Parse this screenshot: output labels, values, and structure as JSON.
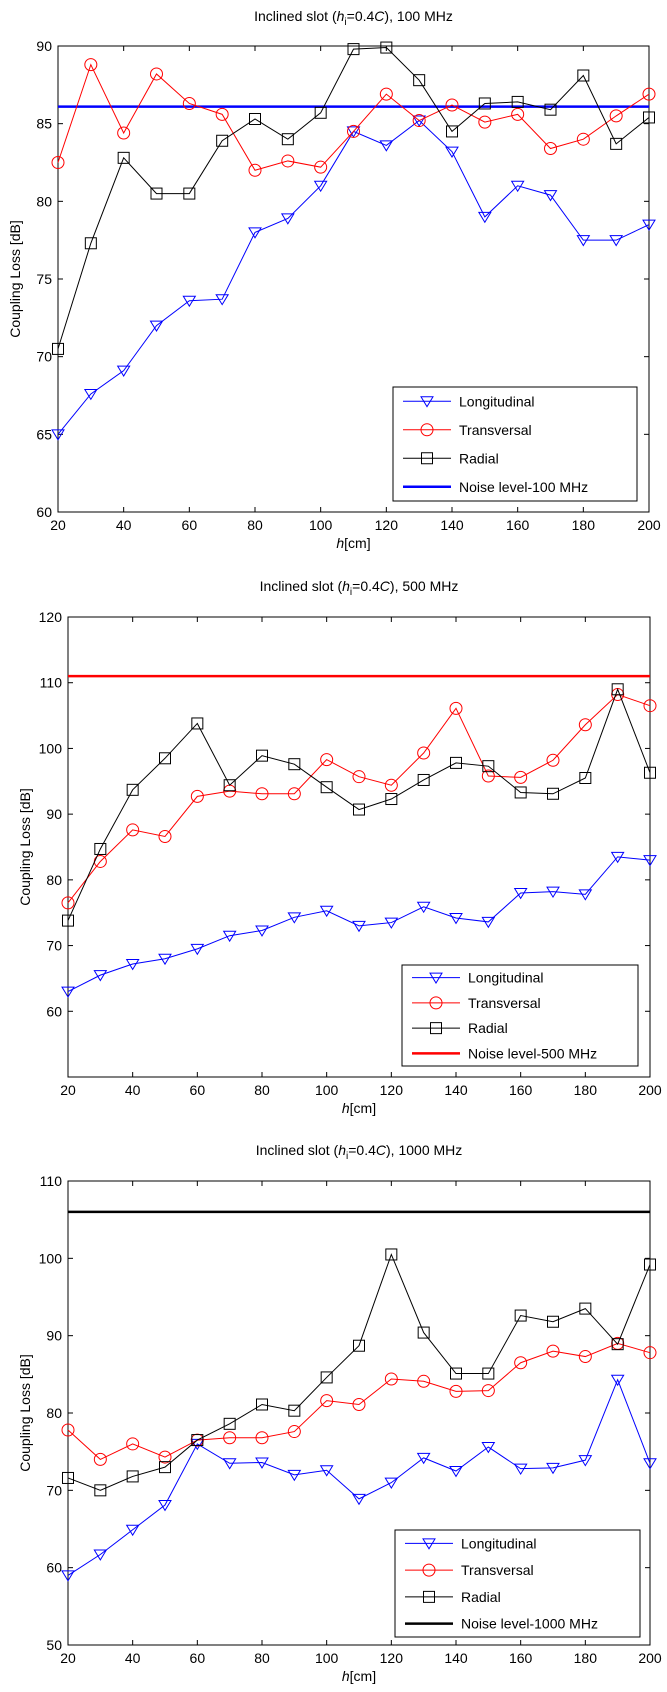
{
  "colors": {
    "longitudinal": "#0000ff",
    "transversal": "#ff0000",
    "radial": "#000000",
    "noise_100": "#0000ff",
    "noise_500": "#ff0000",
    "noise_1000": "#000000"
  },
  "chart_data": [
    {
      "type": "line",
      "title": {
        "pre": "Inclined slot (",
        "h": "h",
        "sub": "i",
        "post": "=0.4",
        "c": "C",
        "end": "), 100 MHz"
      },
      "xlabel": {
        "h": "h",
        "rest": "[cm]"
      },
      "ylabel": "Coupling Loss [dB]",
      "xlim": [
        20,
        200
      ],
      "ylim": [
        60,
        90
      ],
      "xticks": [
        20,
        40,
        60,
        80,
        100,
        120,
        140,
        160,
        180,
        200
      ],
      "yticks": [
        60,
        65,
        70,
        75,
        80,
        85,
        90
      ],
      "x": [
        20,
        30,
        40,
        50,
        60,
        70,
        80,
        90,
        100,
        110,
        120,
        130,
        140,
        150,
        160,
        170,
        180,
        190,
        200
      ],
      "series": [
        {
          "name": "Longitudinal",
          "marker": "triangle-down",
          "color_key": "longitudinal",
          "values": [
            65.0,
            67.6,
            69.1,
            72.0,
            73.6,
            73.7,
            78.0,
            78.9,
            81.0,
            84.5,
            83.6,
            85.2,
            83.2,
            79.0,
            81.0,
            80.4,
            77.5,
            77.5,
            78.5
          ]
        },
        {
          "name": "Transversal",
          "marker": "circle",
          "color_key": "transversal",
          "values": [
            82.5,
            88.8,
            84.4,
            88.2,
            86.3,
            85.6,
            82.0,
            82.6,
            82.2,
            84.5,
            86.9,
            85.2,
            86.2,
            85.1,
            85.6,
            83.4,
            84.0,
            85.5,
            86.9
          ]
        },
        {
          "name": "Radial",
          "marker": "square",
          "color_key": "radial",
          "values": [
            70.5,
            77.3,
            82.8,
            80.5,
            80.5,
            83.9,
            85.3,
            84.0,
            85.7,
            89.8,
            89.9,
            87.8,
            84.5,
            86.3,
            86.4,
            85.9,
            88.1,
            83.7,
            85.4
          ]
        }
      ],
      "noise": {
        "name": "Noise level-100 MHz",
        "value": 86.1,
        "color_key": "noise_100"
      },
      "legend": "bottom-right"
    },
    {
      "type": "line",
      "title": {
        "pre": "Inclined slot (",
        "h": "h",
        "sub": "i",
        "post": "=0.4",
        "c": "C",
        "end": "), 500 MHz"
      },
      "xlabel": {
        "h": "h",
        "rest": "[cm]"
      },
      "ylabel": "Coupling Loss [dB]",
      "xlim": [
        20,
        200
      ],
      "ylim": [
        50,
        120
      ],
      "xticks": [
        20,
        40,
        60,
        80,
        100,
        120,
        140,
        160,
        180,
        200
      ],
      "yticks": [
        60,
        70,
        80,
        90,
        100,
        110,
        120
      ],
      "x": [
        20,
        30,
        40,
        50,
        60,
        70,
        80,
        90,
        100,
        110,
        120,
        130,
        140,
        150,
        160,
        170,
        180,
        190,
        200
      ],
      "series": [
        {
          "name": "Longitudinal",
          "marker": "triangle-down",
          "color_key": "longitudinal",
          "values": [
            63.0,
            65.5,
            67.2,
            68.0,
            69.5,
            71.5,
            72.3,
            74.3,
            75.3,
            73.0,
            73.5,
            75.9,
            74.2,
            73.6,
            78.0,
            78.2,
            77.8,
            83.5,
            83.0
          ]
        },
        {
          "name": "Transversal",
          "marker": "circle",
          "color_key": "transversal",
          "values": [
            76.5,
            82.8,
            87.6,
            86.6,
            92.7,
            93.5,
            93.1,
            93.1,
            98.3,
            95.7,
            94.4,
            99.3,
            106.1,
            95.8,
            95.6,
            98.2,
            103.6,
            108.2,
            106.5
          ]
        },
        {
          "name": "Radial",
          "marker": "square",
          "color_key": "radial",
          "values": [
            73.8,
            84.7,
            93.7,
            98.5,
            103.8,
            94.4,
            98.9,
            97.6,
            94.1,
            90.7,
            92.3,
            95.2,
            97.8,
            97.3,
            93.3,
            93.1,
            95.5,
            109.0,
            96.3
          ]
        }
      ],
      "noise": {
        "name": "Noise level-500 MHz",
        "value": 111.0,
        "color_key": "noise_500"
      },
      "legend": "bottom-right"
    },
    {
      "type": "line",
      "title": {
        "pre": "Inclined slot (",
        "h": "h",
        "sub": "i",
        "post": "=0.4",
        "c": "C",
        "end": "), 1000 MHz"
      },
      "xlabel": {
        "h": "h",
        "rest": "[cm]"
      },
      "ylabel": "Coupling Loss [dB]",
      "xlim": [
        20,
        200
      ],
      "ylim": [
        50,
        110
      ],
      "xticks": [
        20,
        40,
        60,
        80,
        100,
        120,
        140,
        160,
        180,
        200
      ],
      "yticks": [
        50,
        60,
        70,
        80,
        90,
        100,
        110
      ],
      "x": [
        20,
        30,
        40,
        50,
        60,
        70,
        80,
        90,
        100,
        110,
        120,
        130,
        140,
        150,
        160,
        170,
        180,
        190,
        200
      ],
      "series": [
        {
          "name": "Longitudinal",
          "marker": "triangle-down",
          "color_key": "longitudinal",
          "values": [
            59.0,
            61.7,
            64.9,
            68.1,
            76.0,
            73.5,
            73.6,
            72.0,
            72.6,
            68.9,
            71.0,
            74.2,
            72.5,
            75.6,
            72.8,
            72.9,
            73.9,
            84.3,
            73.5
          ]
        },
        {
          "name": "Transversal",
          "marker": "circle",
          "color_key": "transversal",
          "values": [
            77.8,
            74.0,
            76.0,
            74.3,
            76.5,
            76.8,
            76.8,
            77.6,
            81.6,
            81.1,
            84.4,
            84.1,
            82.8,
            82.9,
            86.5,
            88.0,
            87.3,
            89.0,
            87.8
          ]
        },
        {
          "name": "Radial",
          "marker": "square",
          "color_key": "radial",
          "values": [
            71.6,
            70.0,
            71.8,
            73.0,
            76.5,
            78.6,
            81.1,
            80.3,
            84.6,
            88.7,
            100.5,
            90.4,
            85.1,
            85.1,
            92.6,
            91.8,
            93.5,
            88.9,
            99.2
          ]
        }
      ],
      "noise": {
        "name": "Noise level-1000 MHz",
        "value": 106.0,
        "color_key": "noise_1000"
      },
      "legend": "bottom-right"
    }
  ]
}
